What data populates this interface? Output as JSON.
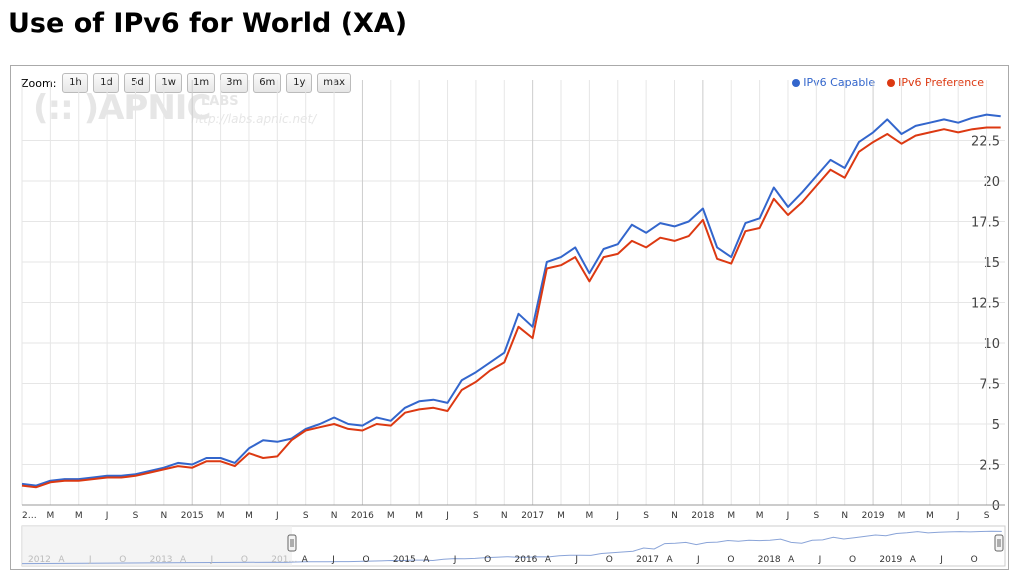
{
  "page": {
    "title": "Use of IPv6 for World (XA)"
  },
  "zoom": {
    "label": "Zoom:",
    "buttons": [
      "1h",
      "1d",
      "5d",
      "1w",
      "1m",
      "3m",
      "6m",
      "1y",
      "max"
    ]
  },
  "watermark": {
    "logo": "(:: )APNIC",
    "labs": "LABS",
    "url": "http://labs.apnic.net/"
  },
  "colors": {
    "capable": "#3366cc",
    "preference": "#dc3912",
    "grid": "#e6e6e6",
    "grid_year": "#cccccc"
  },
  "chart_data": {
    "type": "line",
    "title": "",
    "xlabel": "",
    "ylabel": "",
    "ylim": [
      0,
      25
    ],
    "y_ticks": [
      "0",
      "2.5",
      "5",
      "7.5",
      "10",
      "12.5",
      "15",
      "17.5",
      "20",
      "22.5"
    ],
    "x_ticks": [
      "2…",
      "M",
      "M",
      "J",
      "S",
      "N",
      "2015",
      "M",
      "M",
      "J",
      "S",
      "N",
      "2016",
      "M",
      "M",
      "J",
      "S",
      "N",
      "2017",
      "M",
      "M",
      "J",
      "S",
      "N",
      "2018",
      "M",
      "M",
      "J",
      "S",
      "N",
      "2019",
      "M",
      "M",
      "J",
      "S"
    ],
    "x_ticks_year": [
      "2015",
      "2016",
      "2017",
      "2018",
      "2019"
    ],
    "legend_position": "top-right",
    "grid": true,
    "series": [
      {
        "name": "IPv6 Capable",
        "color": "#3366cc",
        "x": [
          "2014-01",
          "2014-02",
          "2014-03",
          "2014-04",
          "2014-05",
          "2014-06",
          "2014-07",
          "2014-08",
          "2014-09",
          "2014-10",
          "2014-11",
          "2014-12",
          "2015-01",
          "2015-02",
          "2015-03",
          "2015-04",
          "2015-05",
          "2015-06",
          "2015-07",
          "2015-08",
          "2015-09",
          "2015-10",
          "2015-11",
          "2015-12",
          "2016-01",
          "2016-02",
          "2016-03",
          "2016-04",
          "2016-05",
          "2016-06",
          "2016-07",
          "2016-08",
          "2016-09",
          "2016-10",
          "2016-11",
          "2016-12",
          "2017-01",
          "2017-02",
          "2017-03",
          "2017-04",
          "2017-05",
          "2017-06",
          "2017-07",
          "2017-08",
          "2017-09",
          "2017-10",
          "2017-11",
          "2017-12",
          "2018-01",
          "2018-02",
          "2018-03",
          "2018-04",
          "2018-05",
          "2018-06",
          "2018-07",
          "2018-08",
          "2018-09",
          "2018-10",
          "2018-11",
          "2018-12",
          "2019-01",
          "2019-02",
          "2019-03",
          "2019-04",
          "2019-05",
          "2019-06",
          "2019-07",
          "2019-08",
          "2019-09",
          "2019-10"
        ],
        "values": [
          1.3,
          1.2,
          1.5,
          1.6,
          1.6,
          1.7,
          1.8,
          1.8,
          1.9,
          2.1,
          2.3,
          2.6,
          2.5,
          2.9,
          2.9,
          2.6,
          3.5,
          4.0,
          3.9,
          4.1,
          4.7,
          5.0,
          5.4,
          5.0,
          4.9,
          5.4,
          5.2,
          6.0,
          6.4,
          6.5,
          6.3,
          7.7,
          8.2,
          8.8,
          9.4,
          11.8,
          11.0,
          15.0,
          15.3,
          15.9,
          14.3,
          15.8,
          16.1,
          17.3,
          16.8,
          17.4,
          17.2,
          17.5,
          18.3,
          15.9,
          15.3,
          17.4,
          17.7,
          19.6,
          18.4,
          19.3,
          20.3,
          21.3,
          20.8,
          22.4,
          23.0,
          23.8,
          22.9,
          23.4,
          23.6,
          23.8,
          23.6,
          23.9,
          24.1,
          24.0
        ]
      },
      {
        "name": "IPv6 Preference",
        "color": "#dc3912",
        "x": [
          "2014-01",
          "2014-02",
          "2014-03",
          "2014-04",
          "2014-05",
          "2014-06",
          "2014-07",
          "2014-08",
          "2014-09",
          "2014-10",
          "2014-11",
          "2014-12",
          "2015-01",
          "2015-02",
          "2015-03",
          "2015-04",
          "2015-05",
          "2015-06",
          "2015-07",
          "2015-08",
          "2015-09",
          "2015-10",
          "2015-11",
          "2015-12",
          "2016-01",
          "2016-02",
          "2016-03",
          "2016-04",
          "2016-05",
          "2016-06",
          "2016-07",
          "2016-08",
          "2016-09",
          "2016-10",
          "2016-11",
          "2016-12",
          "2017-01",
          "2017-02",
          "2017-03",
          "2017-04",
          "2017-05",
          "2017-06",
          "2017-07",
          "2017-08",
          "2017-09",
          "2017-10",
          "2017-11",
          "2017-12",
          "2018-01",
          "2018-02",
          "2018-03",
          "2018-04",
          "2018-05",
          "2018-06",
          "2018-07",
          "2018-08",
          "2018-09",
          "2018-10",
          "2018-11",
          "2018-12",
          "2019-01",
          "2019-02",
          "2019-03",
          "2019-04",
          "2019-05",
          "2019-06",
          "2019-07",
          "2019-08",
          "2019-09",
          "2019-10"
        ],
        "values": [
          1.2,
          1.1,
          1.4,
          1.5,
          1.5,
          1.6,
          1.7,
          1.7,
          1.8,
          2.0,
          2.2,
          2.4,
          2.3,
          2.7,
          2.7,
          2.4,
          3.2,
          2.9,
          3.0,
          4.0,
          4.6,
          4.8,
          5.0,
          4.7,
          4.6,
          5.0,
          4.9,
          5.7,
          5.9,
          6.0,
          5.8,
          7.1,
          7.6,
          8.3,
          8.8,
          11.0,
          10.3,
          14.6,
          14.8,
          15.3,
          13.8,
          15.3,
          15.5,
          16.3,
          15.9,
          16.5,
          16.3,
          16.6,
          17.6,
          15.2,
          14.9,
          16.9,
          17.1,
          18.9,
          17.9,
          18.7,
          19.7,
          20.7,
          20.2,
          21.8,
          22.4,
          22.9,
          22.3,
          22.8,
          23.0,
          23.2,
          23.0,
          23.2,
          23.3,
          23.3
        ]
      }
    ]
  },
  "navigator": {
    "labels": [
      "2012",
      "A",
      "J",
      "O",
      "2013",
      "A",
      "J",
      "O",
      "201…",
      "A",
      "J",
      "O",
      "2015",
      "A",
      "J",
      "O",
      "2016",
      "A",
      "J",
      "O",
      "2017",
      "A",
      "J",
      "O",
      "2018",
      "A",
      "J",
      "O",
      "2019",
      "A",
      "J",
      "O"
    ]
  }
}
